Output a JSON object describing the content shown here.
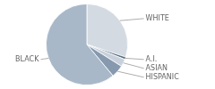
{
  "chart_data": {
    "type": "pie",
    "categories": [
      "WHITE",
      "A.I.",
      "ASIAN",
      "HISPANIC",
      "BLACK"
    ],
    "values": [
      30,
      1,
      3,
      5,
      61
    ],
    "colors": [
      "#d3dae2",
      "#5a6f85",
      "#c8d1db",
      "#8799ae",
      "#a9b8c8"
    ]
  }
}
